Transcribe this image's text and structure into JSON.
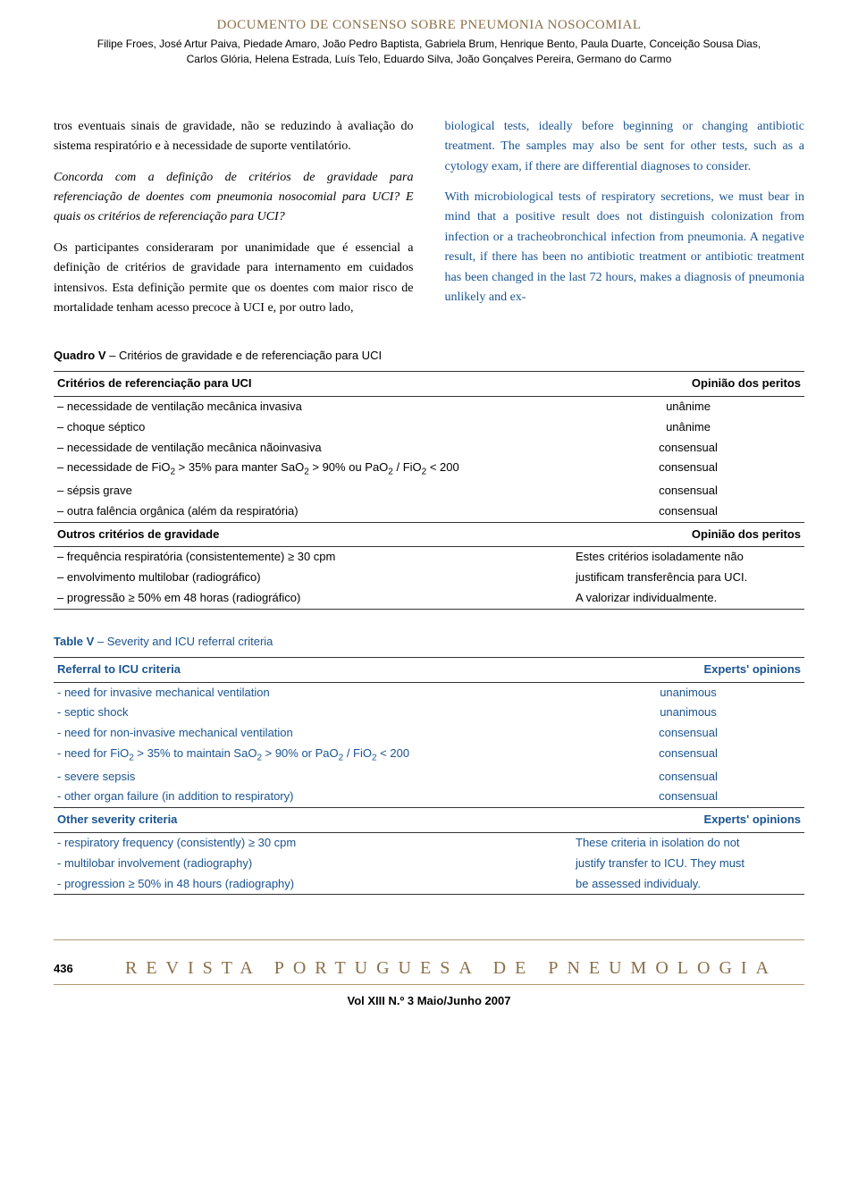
{
  "header": {
    "title": "DOCUMENTO DE CONSENSO SOBRE PNEUMONIA NOSOCOMIAL",
    "authors_line1": "Filipe Froes, José Artur Paiva, Piedade Amaro, João Pedro Baptista, Gabriela Brum, Henrique Bento, Paula Duarte, Conceição Sousa Dias,",
    "authors_line2": "Carlos Glória, Helena Estrada, Luís Telo, Eduardo Silva, João Gonçalves Pereira, Germano do Carmo"
  },
  "body": {
    "left": {
      "para1": "tros eventuais sinais de gravidade, não se reduzindo à avaliação do sistema respiratório e à necessidade de suporte ventilatório.",
      "para2_italic": "Concorda com a definição de critérios de gravidade para referenciação de doentes com pneumonia nosocomial para UCI? E quais os critérios de referenciação para UCI?",
      "para3": "Os participantes consideraram por unanimidade que é essencial a definição de critérios de gravidade para internamento em cuidados intensivos. Esta definição permite que os doentes com maior risco de mortalidade tenham acesso precoce à UCI e, por outro lado,"
    },
    "right": {
      "para1": "biological tests, ideally before beginning or changing antibiotic treatment. The samples may also be sent for other tests, such as a cytology exam, if there are differential diagnoses to consider.",
      "para2": "With microbiological tests of respiratory secretions, we must bear in mind that a positive result does not distinguish colonization from infection or a tracheobronchical infection from pneumonia. A negative result, if there has been no antibiotic treatment or antibiotic treatment has been changed in the last 72 hours, makes a diagnosis of pneumonia unlikely and ex-"
    }
  },
  "table1": {
    "caption_label": "Quadro V",
    "caption_text": " – Critérios de gravidade e de referenciação para UCI",
    "header_left": "Critérios de referenciação para UCI",
    "header_right": "Opinião dos peritos",
    "rows1": [
      {
        "crit": "– necessidade de ventilação mecânica invasiva",
        "op": "unânime"
      },
      {
        "crit": "– choque séptico",
        "op": "unânime"
      },
      {
        "crit": "– necessidade de ventilação mecânica nãoinvasiva",
        "op": "consensual"
      },
      {
        "crit": "– necessidade de FiO₂ > 35% para manter SaO₂ > 90% ou PaO₂ / FiO₂ < 200",
        "op": "consensual"
      },
      {
        "crit": "– sépsis grave",
        "op": "consensual"
      },
      {
        "crit": "– outra falência orgânica (além da respiratória)",
        "op": "consensual"
      }
    ],
    "header2_left": "Outros critérios de gravidade",
    "header2_right": "Opinião dos peritos",
    "rows2": [
      {
        "crit": "– frequência respiratória (consistentemente) ≥ 30 cpm",
        "op": "Estes critérios isoladamente não"
      },
      {
        "crit": "– envolvimento multilobar (radiográfico)",
        "op": "justificam transferência para UCI."
      },
      {
        "crit": "– progressão ≥ 50% em 48 horas (radiográfico)",
        "op": "A valorizar individualmente."
      }
    ]
  },
  "table2": {
    "caption_label": "Table V",
    "caption_text": " – Severity and ICU referral criteria",
    "header_left": "Referral to ICU criteria",
    "header_right": "Experts' opinions",
    "rows1": [
      {
        "crit": "- need for invasive mechanical ventilation",
        "op": "unanimous"
      },
      {
        "crit": "- septic shock",
        "op": "unanimous"
      },
      {
        "crit": "- need for non-invasive mechanical ventilation",
        "op": "consensual"
      },
      {
        "crit": "- need for FiO₂ > 35% to maintain SaO₂ > 90% or PaO₂ / FiO₂ < 200",
        "op": "consensual"
      },
      {
        "crit": "- severe sepsis",
        "op": "consensual"
      },
      {
        "crit": "- other organ failure (in addition to respiratory)",
        "op": "consensual"
      }
    ],
    "header2_left": "Other severity criteria",
    "header2_right": "Experts' opinions",
    "rows2": [
      {
        "crit": "- respiratory frequency (consistently) ≥ 30 cpm",
        "op": "These criteria in isolation do not"
      },
      {
        "crit": "- multilobar involvement (radiography)",
        "op": "justify transfer to ICU. They must"
      },
      {
        "crit": "- progression ≥ 50% in 48 hours (radiography)",
        "op": "be assessed individualy."
      }
    ]
  },
  "footer": {
    "page_num": "436",
    "journal": "REVISTA PORTUGUESA DE PNEUMOLOGIA",
    "issue": "Vol XIII  N.º 3  Maio/Junho 2007"
  },
  "colors": {
    "header_accent": "#8b6f47",
    "blue": "#1a5490",
    "border": "#333333",
    "footer_border": "#b09a70"
  }
}
